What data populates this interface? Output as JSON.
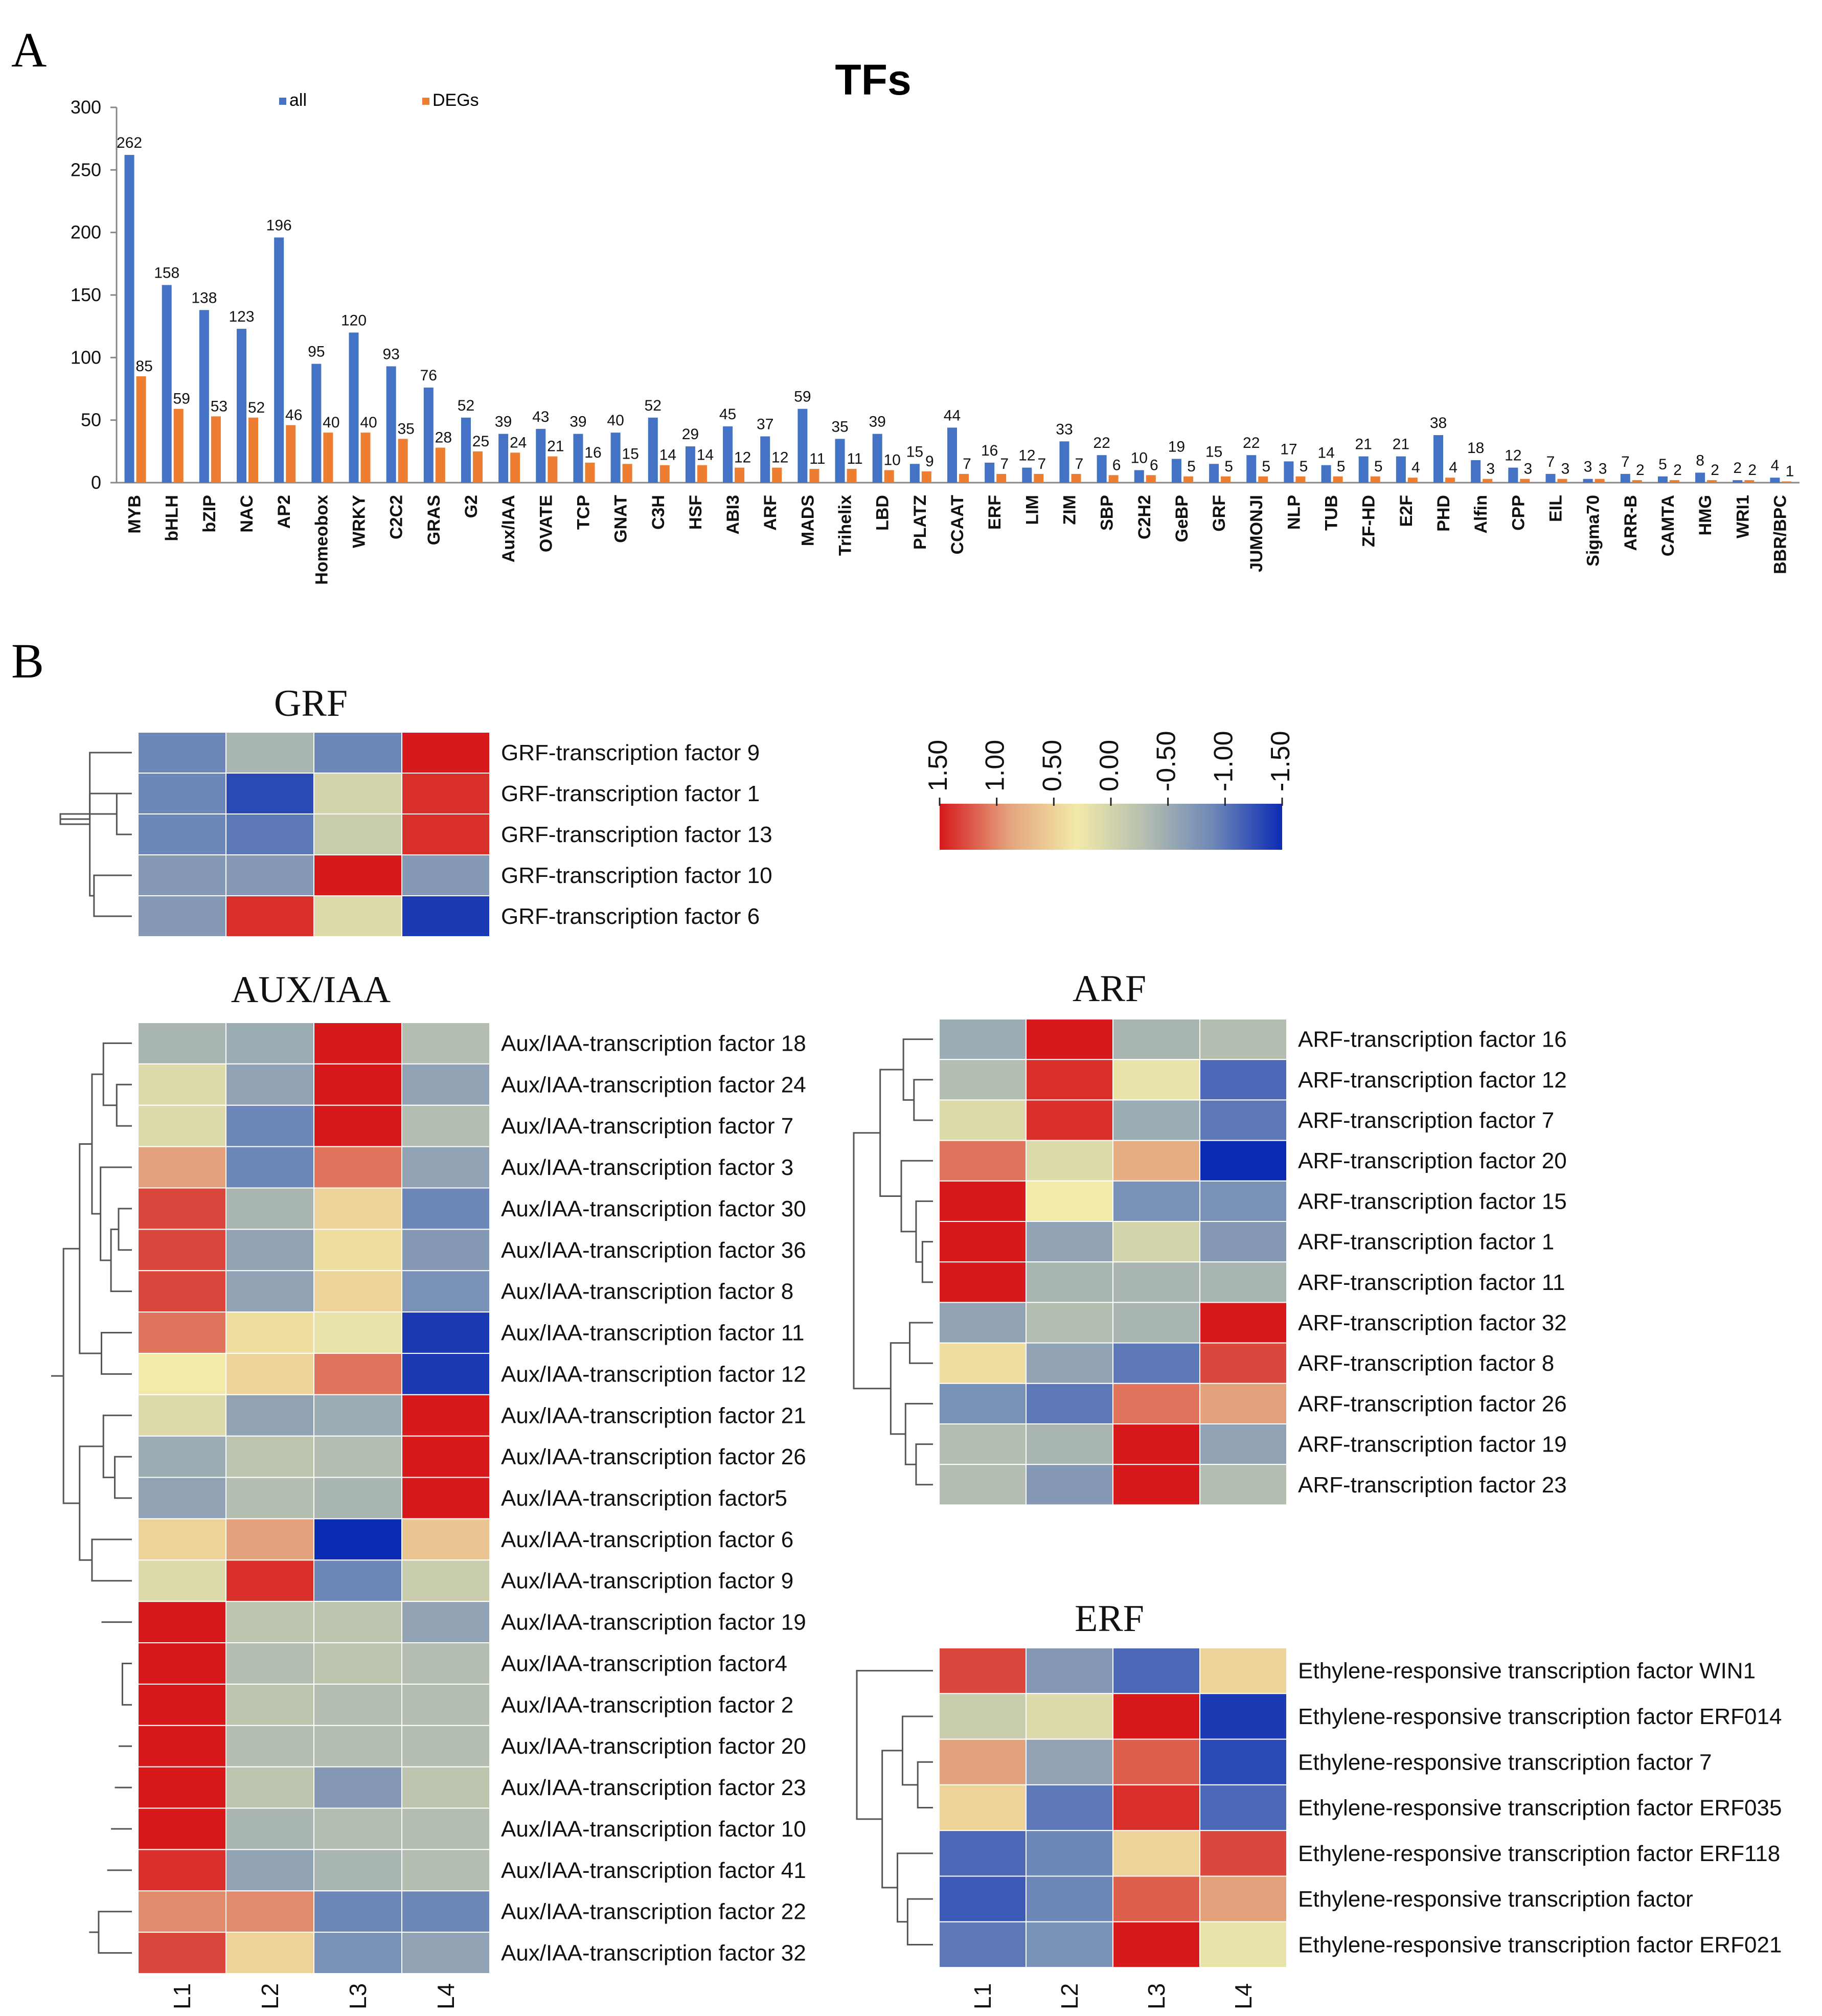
{
  "panels": {
    "a": "A",
    "b": "B"
  },
  "colors": {
    "all": "#4472c4",
    "degs": "#ed7d31",
    "axis": "#888888",
    "dendro": "#555555",
    "cell_border": "#ffffff",
    "scale": [
      "#d7191c",
      "#e4a27c",
      "#f2eaa8",
      "#b4beb0",
      "#6d87b8",
      "#0c2bb3"
    ]
  },
  "chart_data": [
    {
      "type": "bar",
      "title": "TFs",
      "xlabel": "",
      "ylabel": "",
      "ylim": [
        0,
        300
      ],
      "yticks": [
        0,
        50,
        100,
        150,
        200,
        250,
        300
      ],
      "legend": "top-left",
      "categories": [
        "MYB",
        "bHLH",
        "bZIP",
        "NAC",
        "AP2",
        "Homeobox",
        "WRKY",
        "C2C2",
        "GRAS",
        "G2",
        "Aux/IAA",
        "OVATE",
        "TCP",
        "GNAT",
        "C3H",
        "HSF",
        "ABI3",
        "ARF",
        "MADS",
        "Trihelix",
        "LBD",
        "PLATZ",
        "CCAAT",
        "ERF",
        "LIM",
        "ZIM",
        "SBP",
        "C2H2",
        "GeBP",
        "GRF",
        "JUMONJI",
        "NLP",
        "TUB",
        "ZF-HD",
        "E2F",
        "PHD",
        "Alfin",
        "CPP",
        "EIL",
        "Sigma70",
        "ARR-B",
        "CAMTA",
        "HMG",
        "WRI1",
        "BBR/BPC"
      ],
      "series": [
        {
          "name": "all",
          "values": [
            262,
            158,
            138,
            123,
            196,
            95,
            120,
            93,
            76,
            52,
            39,
            43,
            39,
            40,
            52,
            29,
            45,
            37,
            59,
            35,
            39,
            15,
            44,
            16,
            12,
            33,
            22,
            10,
            19,
            15,
            22,
            17,
            14,
            21,
            21,
            38,
            18,
            12,
            7,
            3,
            7,
            5,
            8,
            2,
            4
          ]
        },
        {
          "name": "DEGs",
          "values": [
            85,
            59,
            53,
            52,
            46,
            40,
            40,
            35,
            28,
            25,
            24,
            21,
            16,
            15,
            14,
            14,
            12,
            12,
            11,
            11,
            10,
            9,
            7,
            7,
            7,
            7,
            6,
            6,
            5,
            5,
            5,
            5,
            5,
            5,
            4,
            4,
            3,
            3,
            3,
            3,
            2,
            2,
            2,
            2,
            1
          ]
        }
      ]
    },
    {
      "type": "heatmap",
      "title": "GRF",
      "columns": [
        "L1",
        "L2",
        "L3",
        "L4"
      ],
      "rows": [
        "GRF-transcription factor 9",
        "GRF-transcription factor 1",
        "GRF-transcription factor 13",
        "GRF-transcription factor 10",
        "GRF-transcription factor 6"
      ],
      "values": [
        [
          -0.9,
          -0.4,
          -0.9,
          1.5
        ],
        [
          -0.9,
          -1.3,
          0.0,
          1.4
        ],
        [
          -0.9,
          -1.0,
          -0.1,
          1.4
        ],
        [
          -0.7,
          -0.7,
          1.5,
          -0.7
        ],
        [
          -0.7,
          1.4,
          0.1,
          -1.4
        ]
      ],
      "dendrogram": [
        [
          3,
          4,
          0.45
        ],
        [
          1,
          2,
          0.18
        ],
        [
          0,
          5,
          0.5
        ],
        [
          6,
          7,
          0.85
        ],
        [
          8,
          1,
          0.5
        ]
      ]
    },
    {
      "type": "heatmap",
      "title": "AUX/IAA",
      "columns": [
        "L1",
        "L2",
        "L3",
        "L4"
      ],
      "rows": [
        "Aux/IAA-transcription factor 18",
        "Aux/IAA-transcription factor 24",
        "Aux/IAA-transcription factor 7",
        "Aux/IAA-transcription factor 3",
        "Aux/IAA-transcription factor 30",
        "Aux/IAA-transcription factor 36",
        "Aux/IAA-transcription factor 8",
        "Aux/IAA-transcription factor 11",
        "Aux/IAA-transcription factor 12",
        "Aux/IAA-transcription factor 21",
        "Aux/IAA-transcription factor 26",
        "Aux/IAA-transcription factor5",
        "Aux/IAA-transcription factor 6",
        "Aux/IAA-transcription factor 9",
        "Aux/IAA-transcription factor 19",
        "Aux/IAA-transcription factor4",
        "Aux/IAA-transcription factor 2",
        "Aux/IAA-transcription factor 20",
        "Aux/IAA-transcription factor 23",
        "Aux/IAA-transcription factor 10",
        "Aux/IAA-transcription factor 41",
        "Aux/IAA-transcription factor 22",
        "Aux/IAA-transcription factor 32"
      ],
      "values": [
        [
          -0.4,
          -0.5,
          1.5,
          -0.3
        ],
        [
          0.1,
          -0.6,
          1.5,
          -0.6
        ],
        [
          0.1,
          -0.9,
          1.5,
          -0.3
        ],
        [
          0.9,
          -0.9,
          1.1,
          -0.6
        ],
        [
          1.3,
          -0.4,
          0.5,
          -0.9
        ],
        [
          1.3,
          -0.6,
          0.4,
          -0.7
        ],
        [
          1.3,
          -0.6,
          0.5,
          -0.8
        ],
        [
          1.1,
          0.4,
          0.2,
          -1.4
        ],
        [
          0.3,
          0.5,
          1.1,
          -1.4
        ],
        [
          0.1,
          -0.6,
          -0.5,
          1.5
        ],
        [
          -0.5,
          -0.2,
          -0.3,
          1.5
        ],
        [
          -0.6,
          -0.3,
          -0.4,
          1.5
        ],
        [
          0.5,
          0.9,
          -1.5,
          0.6
        ],
        [
          0.1,
          1.4,
          -0.9,
          -0.1
        ],
        [
          1.5,
          -0.2,
          -0.2,
          -0.6
        ],
        [
          1.5,
          -0.3,
          -0.2,
          -0.3
        ],
        [
          1.5,
          -0.2,
          -0.3,
          -0.3
        ],
        [
          1.5,
          -0.3,
          -0.3,
          -0.3
        ],
        [
          1.5,
          -0.2,
          -0.7,
          -0.2
        ],
        [
          1.5,
          -0.4,
          -0.3,
          -0.3
        ],
        [
          1.4,
          -0.6,
          -0.4,
          -0.3
        ],
        [
          1.0,
          1.0,
          -0.9,
          -0.9
        ],
        [
          1.3,
          0.5,
          -0.8,
          -0.6
        ]
      ],
      "dendrogram": [
        [
          1,
          2,
          0.16
        ],
        [
          0,
          23,
          0.3
        ],
        [
          4,
          5,
          0.14
        ],
        [
          25,
          6,
          0.22
        ],
        [
          3,
          26,
          0.33
        ],
        [
          24,
          27,
          0.42
        ],
        [
          7,
          8,
          0.32
        ],
        [
          28,
          29,
          0.55
        ],
        [
          10,
          11,
          0.18
        ],
        [
          9,
          31,
          0.3
        ],
        [
          12,
          13,
          0.42
        ],
        [
          32,
          33,
          0.55
        ],
        [
          30,
          34,
          0.72
        ],
        [
          15,
          16,
          0.1
        ],
        [
          17,
          37,
          0.14
        ],
        [
          18,
          38,
          0.18
        ],
        [
          19,
          39,
          0.22
        ],
        [
          20,
          40,
          0.26
        ],
        [
          14,
          41,
          0.32
        ],
        [
          21,
          22,
          0.35
        ],
        [
          42,
          43,
          0.45
        ],
        [
          35,
          44,
          0.85
        ]
      ]
    },
    {
      "type": "heatmap",
      "title": "ARF",
      "columns": [
        "L1",
        "L2",
        "L3",
        "L4"
      ],
      "rows": [
        "ARF-transcription factor 16",
        "ARF-transcription factor 12",
        "ARF-transcription factor 7",
        "ARF-transcription factor 20",
        "ARF-transcription factor 15",
        "ARF-transcription factor 1",
        "ARF-transcription factor 11",
        "ARF-transcription factor 32",
        "ARF-transcription factor 8",
        "ARF-transcription factor 26",
        "ARF-transcription factor 19",
        "ARF-transcription factor 23"
      ],
      "values": [
        [
          -0.5,
          1.5,
          -0.4,
          -0.3
        ],
        [
          -0.3,
          1.4,
          0.2,
          -1.1
        ],
        [
          0.1,
          1.4,
          -0.5,
          -1.0
        ],
        [
          1.1,
          0.1,
          0.8,
          -1.5
        ],
        [
          1.5,
          0.3,
          -0.8,
          -0.8
        ],
        [
          1.5,
          -0.6,
          0.0,
          -0.7
        ],
        [
          1.5,
          -0.4,
          -0.4,
          -0.4
        ],
        [
          -0.6,
          -0.3,
          -0.4,
          1.5
        ],
        [
          0.4,
          -0.6,
          -1.0,
          1.3
        ],
        [
          -0.8,
          -1.0,
          1.1,
          0.9
        ],
        [
          -0.3,
          -0.4,
          1.5,
          -0.6
        ],
        [
          -0.3,
          -0.7,
          1.5,
          -0.3
        ]
      ],
      "dendrogram": [
        [
          1,
          2,
          0.18
        ],
        [
          0,
          12,
          0.28
        ],
        [
          5,
          6,
          0.1
        ],
        [
          4,
          14,
          0.16
        ],
        [
          3,
          15,
          0.3
        ],
        [
          13,
          16,
          0.5
        ],
        [
          7,
          8,
          0.22
        ],
        [
          10,
          11,
          0.16
        ],
        [
          9,
          19,
          0.26
        ],
        [
          18,
          20,
          0.4
        ],
        [
          17,
          21,
          0.75
        ]
      ]
    },
    {
      "type": "heatmap",
      "title": "ERF",
      "columns": [
        "L1",
        "L2",
        "L3",
        "L4"
      ],
      "rows": [
        "Ethylene-responsive transcription factor WIN1",
        "Ethylene-responsive transcription factor ERF014",
        "Ethylene-responsive transcription factor 7",
        "Ethylene-responsive transcription factor ERF035",
        "Ethylene-responsive transcription factor ERF118",
        "Ethylene-responsive transcription factor",
        "Ethylene-responsive transcription factor ERF021"
      ],
      "values": [
        [
          1.3,
          -0.7,
          -1.1,
          0.5
        ],
        [
          -0.1,
          0.1,
          1.5,
          -1.4
        ],
        [
          0.9,
          -0.6,
          1.2,
          -1.3
        ],
        [
          0.5,
          -1.0,
          1.4,
          -1.1
        ],
        [
          -1.1,
          -0.9,
          0.5,
          1.3
        ],
        [
          -1.2,
          -0.9,
          1.2,
          0.9
        ],
        [
          -1.0,
          -0.8,
          1.5,
          0.2
        ]
      ],
      "dendrogram": [
        [
          2,
          3,
          0.15
        ],
        [
          1,
          7,
          0.3
        ],
        [
          5,
          6,
          0.25
        ],
        [
          4,
          9,
          0.35
        ],
        [
          8,
          10,
          0.5
        ],
        [
          0,
          11,
          0.75
        ]
      ]
    }
  ],
  "colorbar": {
    "labels": [
      "1.50",
      "1.00",
      "0.50",
      "0.00",
      "-0.50",
      "-1.00",
      "-1.50"
    ],
    "range": [
      -1.5,
      1.5
    ]
  }
}
